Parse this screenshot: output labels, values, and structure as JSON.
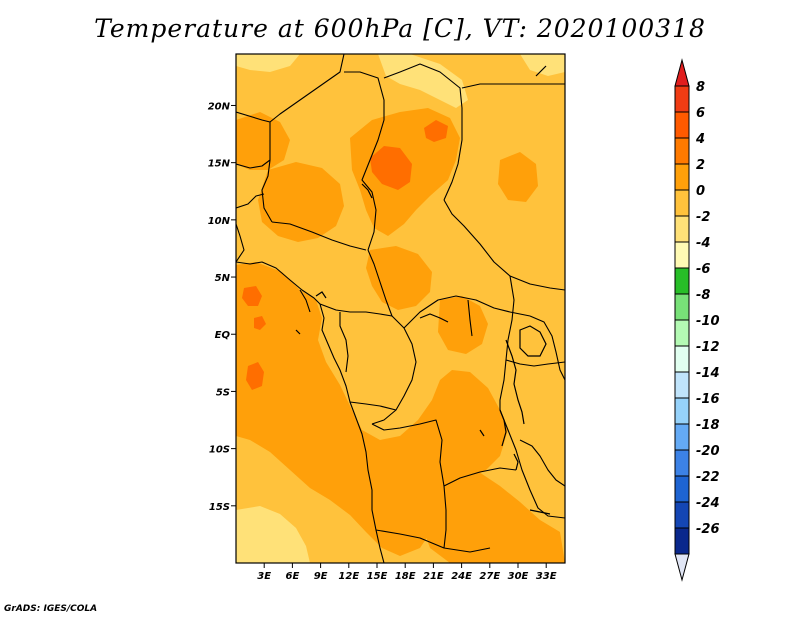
{
  "title": "Temperature at 600hPa [C], VT: 2020100318",
  "credit": "GrADS: IGES/COLA",
  "map": {
    "lon_range": [
      0,
      35
    ],
    "lat_range": [
      -20,
      24.5
    ],
    "x_ticks": [
      {
        "value": 3,
        "label": "3E"
      },
      {
        "value": 6,
        "label": "6E"
      },
      {
        "value": 9,
        "label": "9E"
      },
      {
        "value": 12,
        "label": "12E"
      },
      {
        "value": 15,
        "label": "15E"
      },
      {
        "value": 18,
        "label": "18E"
      },
      {
        "value": 21,
        "label": "21E"
      },
      {
        "value": 24,
        "label": "24E"
      },
      {
        "value": 27,
        "label": "27E"
      },
      {
        "value": 30,
        "label": "30E"
      },
      {
        "value": 33,
        "label": "33E"
      }
    ],
    "y_ticks": [
      {
        "value": 20,
        "label": "20N"
      },
      {
        "value": 15,
        "label": "15N"
      },
      {
        "value": 10,
        "label": "10N"
      },
      {
        "value": 5,
        "label": "5N"
      },
      {
        "value": 0,
        "label": "EQ"
      },
      {
        "value": -5,
        "label": "5S"
      },
      {
        "value": -10,
        "label": "10S"
      },
      {
        "value": -15,
        "label": "15S"
      }
    ],
    "fill_colors": {
      "0_to_2": "#ffc23c",
      "2_to_4": "#ffa00a",
      "4_to_6": "#ff6e00",
      "-2_to_0": "#ffe178"
    }
  },
  "colorbar": {
    "top_arrow_color": "#e11e1e",
    "bottom_arrow_color": "#e1e6f5",
    "levels": [
      {
        "label": "8",
        "color": "#f03c14"
      },
      {
        "label": "6",
        "color": "#ff5a00"
      },
      {
        "label": "4",
        "color": "#ff7a00"
      },
      {
        "label": "2",
        "color": "#ffa00a"
      },
      {
        "label": "0",
        "color": "#ffc23c"
      },
      {
        "label": "-2",
        "color": "#ffe178"
      },
      {
        "label": "-4",
        "color": "#fffab4"
      },
      {
        "label": "-6",
        "color": "#28be28"
      },
      {
        "label": "-8",
        "color": "#78e178"
      },
      {
        "label": "-10",
        "color": "#b4fab4"
      },
      {
        "label": "-12",
        "color": "#e1fff0"
      },
      {
        "label": "-14",
        "color": "#c0e4fb"
      },
      {
        "label": "-16",
        "color": "#96d2fa"
      },
      {
        "label": "-18",
        "color": "#64aaf5"
      },
      {
        "label": "-20",
        "color": "#3c82e6"
      },
      {
        "label": "-22",
        "color": "#1e64d2"
      },
      {
        "label": "-24",
        "color": "#1446b4"
      },
      {
        "label": "-26",
        "color": "#0a288c"
      },
      {
        "label": "",
        "color": "#000a50"
      }
    ]
  }
}
